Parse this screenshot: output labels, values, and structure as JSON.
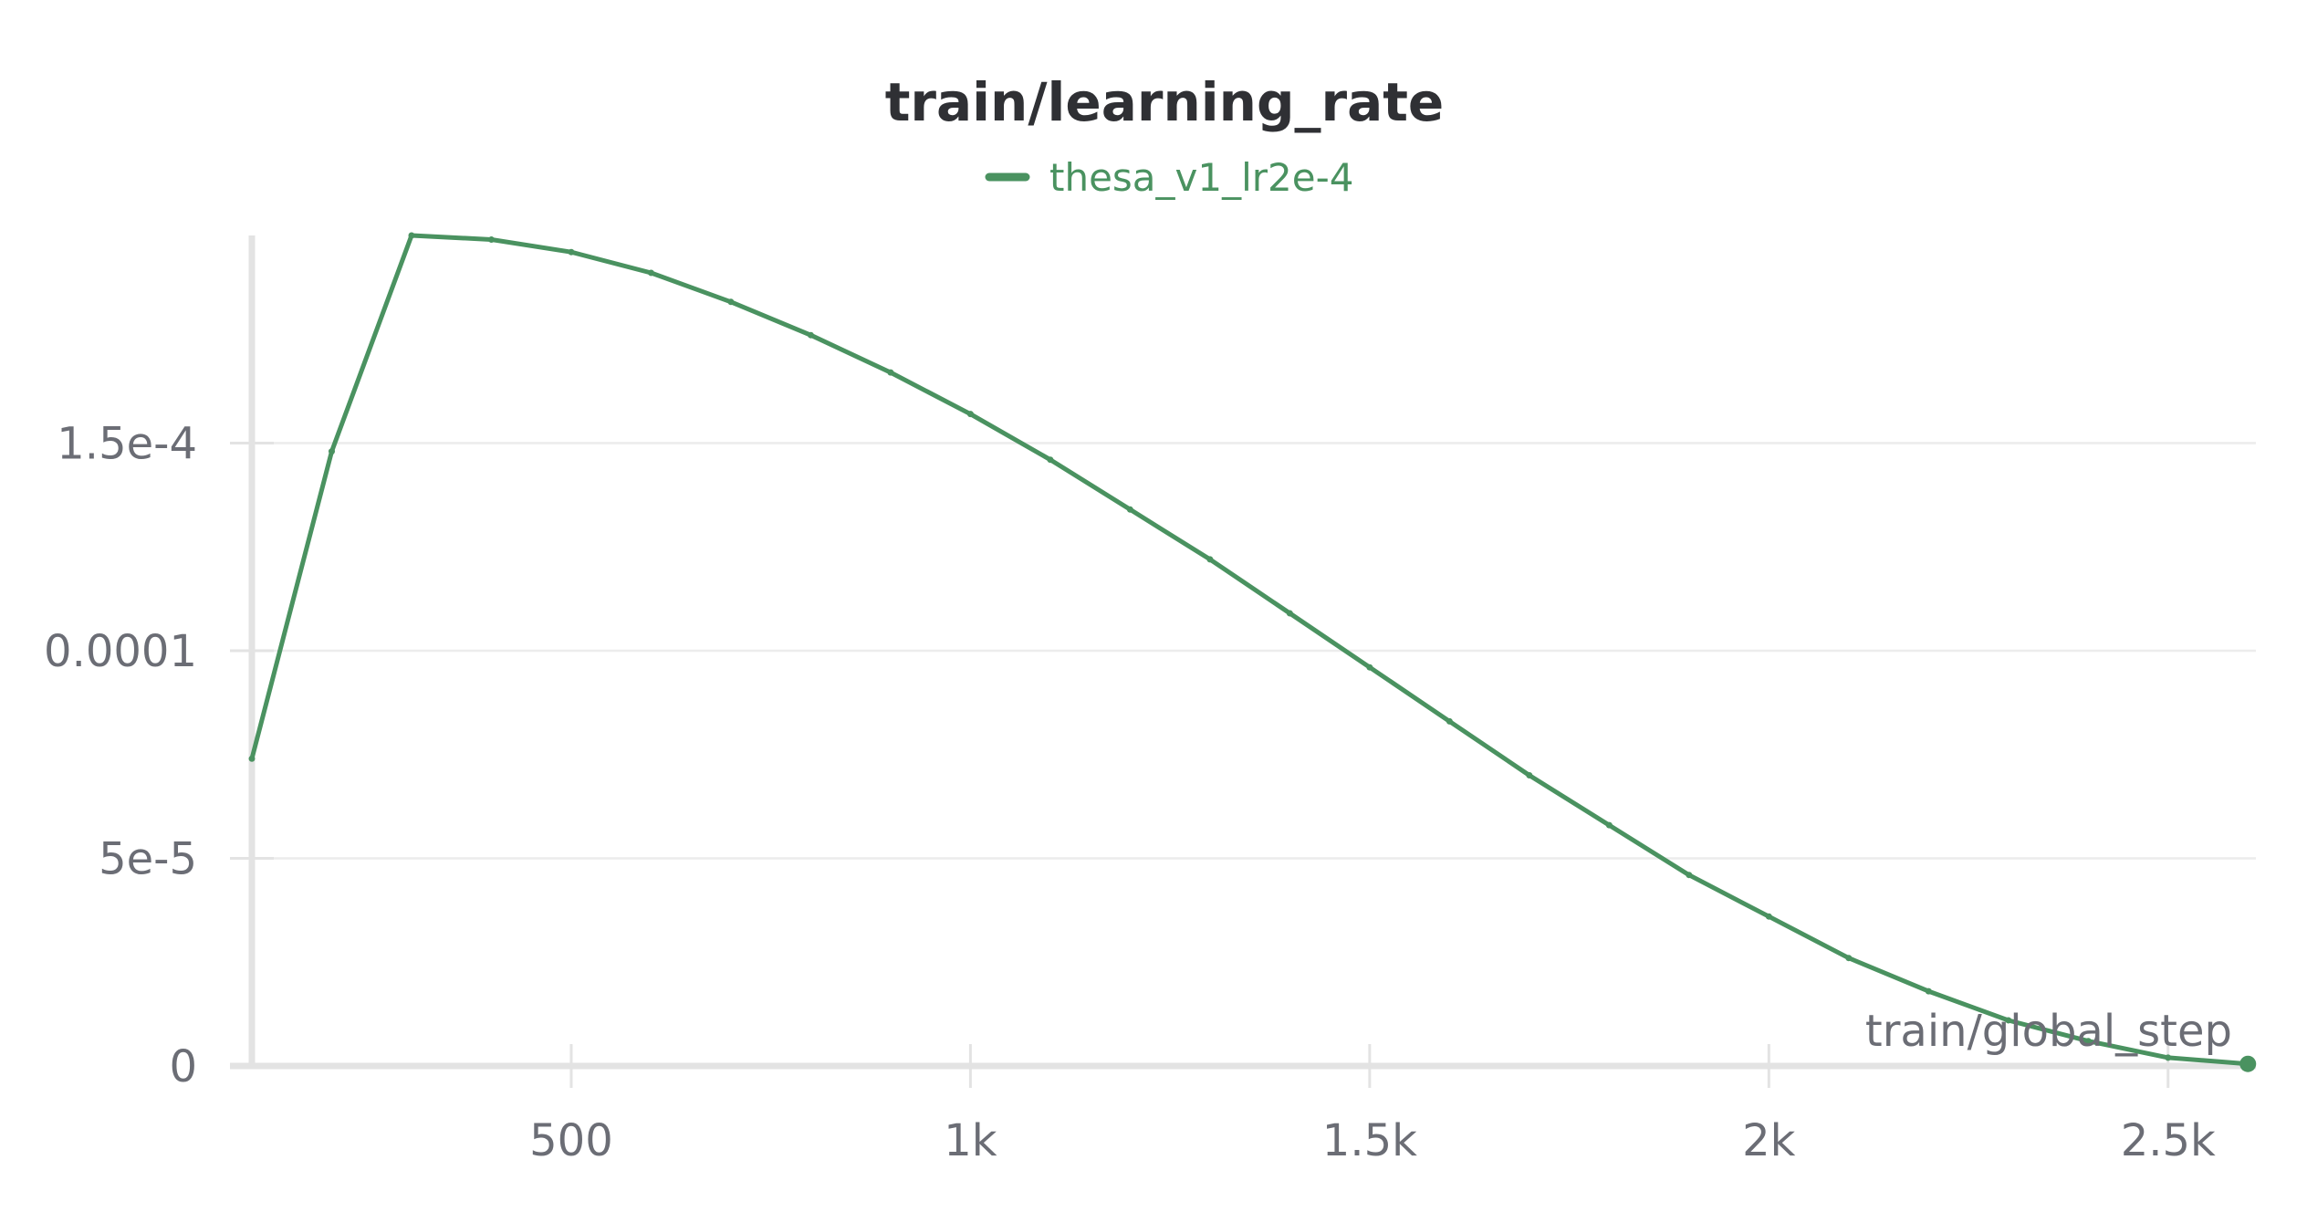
{
  "chart_data": {
    "type": "line",
    "title": "train/learning_rate",
    "xlabel": "train/global_step",
    "ylabel": "",
    "xlim": [
      100,
      2610
    ],
    "ylim": [
      0,
      0.0002
    ],
    "x_ticks": [
      {
        "value": 500,
        "label": "500"
      },
      {
        "value": 1000,
        "label": "1k"
      },
      {
        "value": 1500,
        "label": "1.5k"
      },
      {
        "value": 2000,
        "label": "2k"
      },
      {
        "value": 2500,
        "label": "2.5k"
      }
    ],
    "y_ticks": [
      {
        "value": 0,
        "label": "0"
      },
      {
        "value": 5e-05,
        "label": "5e-5"
      },
      {
        "value": 0.0001,
        "label": "0.0001"
      },
      {
        "value": 0.00015,
        "label": "1.5e-4"
      }
    ],
    "grid": true,
    "legend_position": "top-center",
    "series": [
      {
        "name": "thesa_v1_lr2e-4",
        "color": "#4a9260",
        "x": [
          100,
          200,
          300,
          400,
          500,
          600,
          700,
          800,
          900,
          1000,
          1100,
          1200,
          1300,
          1400,
          1500,
          1600,
          1700,
          1800,
          1900,
          2000,
          2100,
          2200,
          2300,
          2400,
          2500,
          2600
        ],
        "y": [
          7.4e-05,
          0.000148,
          0.0002,
          0.000199,
          0.000196,
          0.000191,
          0.000184,
          0.000176,
          0.000167,
          0.000157,
          0.000146,
          0.000134,
          0.000122,
          0.000109,
          9.6e-05,
          8.3e-05,
          7e-05,
          5.8e-05,
          4.6e-05,
          3.6e-05,
          2.6e-05,
          1.8e-05,
          1.1e-05,
          6e-06,
          2e-06,
          5e-07
        ]
      }
    ]
  }
}
